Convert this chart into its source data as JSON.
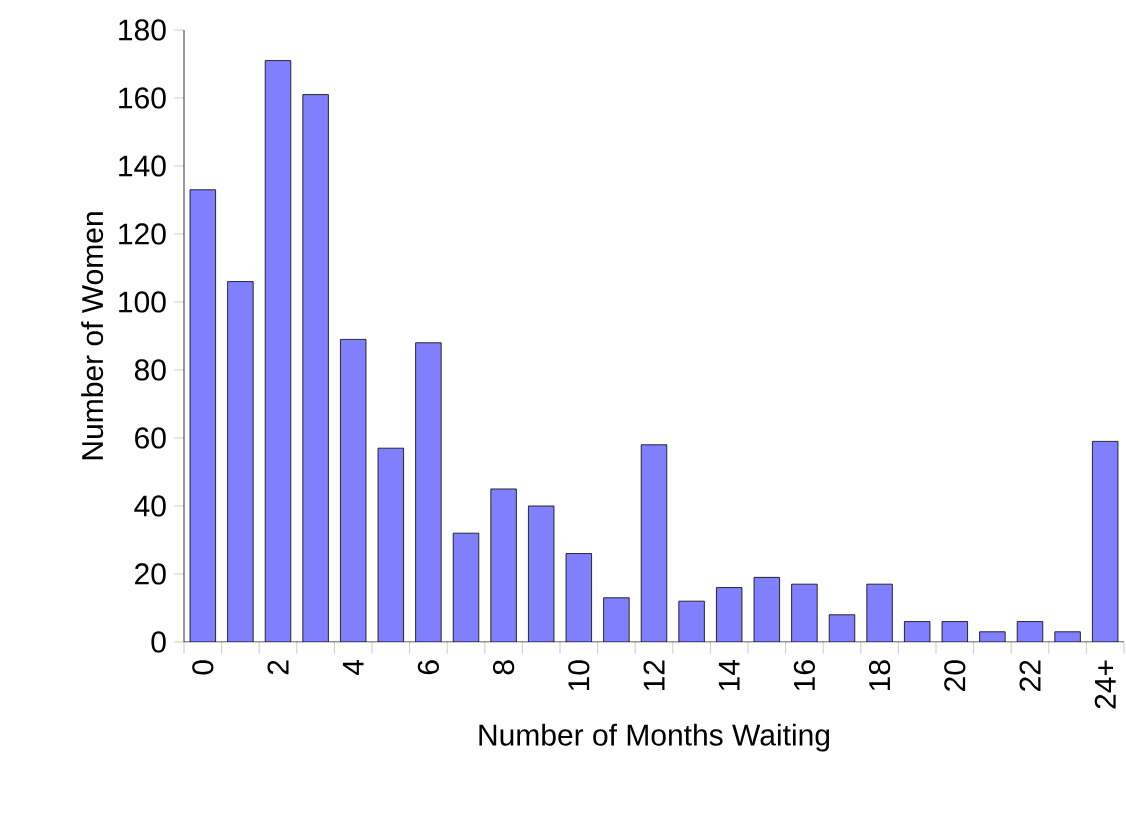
{
  "chart_data": {
    "type": "bar",
    "xlabel": "Number of Months Waiting",
    "ylabel": "Number of Women",
    "categories": [
      "0",
      null,
      "2",
      null,
      "4",
      null,
      "6",
      null,
      "8",
      null,
      "10",
      null,
      "12",
      null,
      "14",
      null,
      "16",
      null,
      "18",
      null,
      "20",
      null,
      "22",
      null,
      "24+"
    ],
    "values": [
      133,
      106,
      171,
      161,
      89,
      57,
      88,
      32,
      45,
      40,
      26,
      13,
      58,
      12,
      16,
      19,
      17,
      8,
      17,
      6,
      6,
      3,
      6,
      3,
      59
    ],
    "color": "#8080ff",
    "ylim": [
      0,
      180
    ],
    "yticks": [
      0,
      20,
      40,
      60,
      80,
      100,
      120,
      140,
      160,
      180
    ],
    "grid": false
  }
}
